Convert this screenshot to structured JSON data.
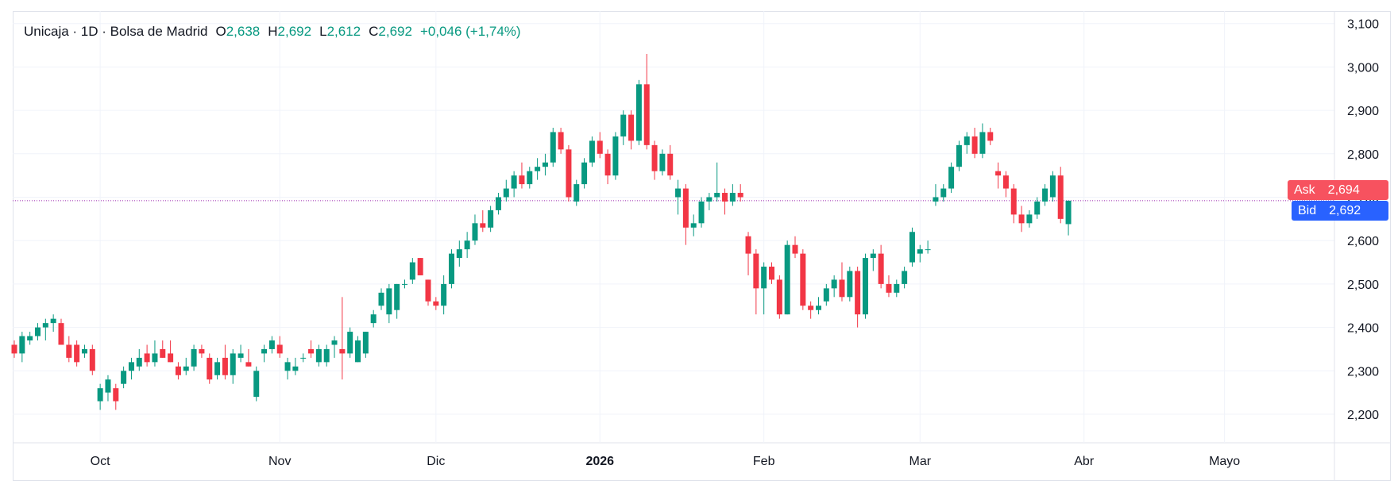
{
  "legend": {
    "symbol": "Unicaja · 1D · Bolsa de Madrid",
    "open_label": "O",
    "open": "2,638",
    "high_label": "H",
    "high": "2,692",
    "low_label": "L",
    "low": "2,612",
    "close_label": "C",
    "close": "2,692",
    "change": "+0,046 (+1,74%)"
  },
  "ask": {
    "label": "Ask",
    "value": "2,694",
    "price": 2.694
  },
  "bid": {
    "label": "Bid",
    "value": "2,692",
    "price": 2.692
  },
  "colors": {
    "up": "#089981",
    "down": "#f23645",
    "ask": "#f7525f",
    "bid": "#2962ff",
    "bidline": "#9c27b0",
    "grid": "#f0f3fa"
  },
  "chart_data": {
    "type": "candlestick",
    "y_ticks": [
      "2,200",
      "2,300",
      "2,400",
      "2,500",
      "2,600",
      "2,700",
      "2,800",
      "2,900",
      "3,000",
      "3,100"
    ],
    "ylim": [
      2.17,
      3.12
    ],
    "x_ticks": [
      {
        "label": "Oct",
        "index": 11,
        "bold": false
      },
      {
        "label": "Nov",
        "index": 34,
        "bold": false
      },
      {
        "label": "Dic",
        "index": 54,
        "bold": false
      },
      {
        "label": "2026",
        "index": 75,
        "bold": true
      },
      {
        "label": "Feb",
        "index": 96,
        "bold": false
      },
      {
        "label": "Mar",
        "index": 116,
        "bold": false
      },
      {
        "label": "Abr",
        "index": 137,
        "bold": false
      },
      {
        "label": "Mayo",
        "index": 155,
        "bold": false
      }
    ],
    "candles": [
      [
        2.36,
        2.37,
        2.33,
        2.34
      ],
      [
        2.34,
        2.39,
        2.32,
        2.38
      ],
      [
        2.37,
        2.39,
        2.36,
        2.38
      ],
      [
        2.38,
        2.41,
        2.37,
        2.4
      ],
      [
        2.4,
        2.42,
        2.37,
        2.41
      ],
      [
        2.41,
        2.43,
        2.39,
        2.42
      ],
      [
        2.41,
        2.42,
        2.36,
        2.36
      ],
      [
        2.36,
        2.38,
        2.32,
        2.33
      ],
      [
        2.36,
        2.37,
        2.31,
        2.32
      ],
      [
        2.34,
        2.36,
        2.33,
        2.35
      ],
      [
        2.35,
        2.36,
        2.29,
        2.3
      ],
      [
        2.23,
        2.27,
        2.21,
        2.26
      ],
      [
        2.25,
        2.29,
        2.23,
        2.28
      ],
      [
        2.26,
        2.27,
        2.21,
        2.23
      ],
      [
        2.27,
        2.31,
        2.26,
        2.3
      ],
      [
        2.3,
        2.33,
        2.28,
        2.32
      ],
      [
        2.31,
        2.35,
        2.3,
        2.33
      ],
      [
        2.34,
        2.36,
        2.31,
        2.32
      ],
      [
        2.32,
        2.37,
        2.31,
        2.34
      ],
      [
        2.35,
        2.37,
        2.33,
        2.33
      ],
      [
        2.34,
        2.37,
        2.32,
        2.32
      ],
      [
        2.31,
        2.32,
        2.28,
        2.29
      ],
      [
        2.3,
        2.33,
        2.29,
        2.31
      ],
      [
        2.31,
        2.36,
        2.3,
        2.35
      ],
      [
        2.35,
        2.36,
        2.33,
        2.34
      ],
      [
        2.33,
        2.34,
        2.27,
        2.28
      ],
      [
        2.29,
        2.33,
        2.28,
        2.32
      ],
      [
        2.33,
        2.36,
        2.28,
        2.29
      ],
      [
        2.29,
        2.35,
        2.27,
        2.34
      ],
      [
        2.33,
        2.36,
        2.32,
        2.34
      ],
      [
        2.32,
        2.35,
        2.31,
        2.31
      ],
      [
        2.24,
        2.31,
        2.23,
        2.3
      ],
      [
        2.34,
        2.36,
        2.32,
        2.35
      ],
      [
        2.35,
        2.38,
        2.34,
        2.37
      ],
      [
        2.36,
        2.38,
        2.33,
        2.34
      ],
      [
        2.3,
        2.33,
        2.28,
        2.32
      ],
      [
        2.3,
        2.33,
        2.29,
        2.31
      ],
      [
        2.33,
        2.34,
        2.32,
        2.33
      ],
      [
        2.35,
        2.37,
        2.33,
        2.34
      ],
      [
        2.32,
        2.36,
        2.31,
        2.35
      ],
      [
        2.32,
        2.36,
        2.31,
        2.35
      ],
      [
        2.36,
        2.38,
        2.33,
        2.37
      ],
      [
        2.35,
        2.47,
        2.28,
        2.34
      ],
      [
        2.34,
        2.4,
        2.33,
        2.39
      ],
      [
        2.32,
        2.38,
        2.32,
        2.37
      ],
      [
        2.34,
        2.39,
        2.33,
        2.39
      ],
      [
        2.41,
        2.44,
        2.4,
        2.43
      ],
      [
        2.45,
        2.49,
        2.44,
        2.48
      ],
      [
        2.43,
        2.5,
        2.41,
        2.49
      ],
      [
        2.44,
        2.5,
        2.42,
        2.5
      ],
      [
        2.5,
        2.51,
        2.49,
        2.5
      ],
      [
        2.51,
        2.56,
        2.5,
        2.55
      ],
      [
        2.56,
        2.56,
        2.52,
        2.52
      ],
      [
        2.51,
        2.51,
        2.45,
        2.46
      ],
      [
        2.46,
        2.47,
        2.44,
        2.45
      ]
    ]
  }
}
